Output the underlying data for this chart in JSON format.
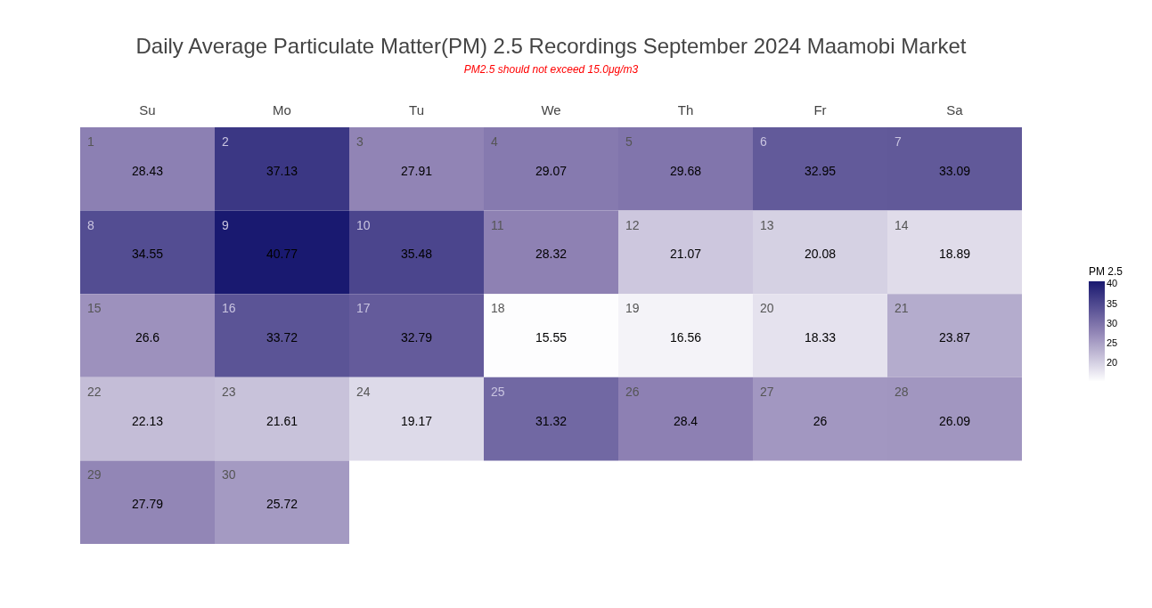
{
  "chart_data": {
    "type": "heatmap",
    "title": "Daily Average Particulate Matter(PM) 2.5 Recordings September 2024 Maamobi Market",
    "subtitle": "PM2.5 should not exceed 15.0μg/m3",
    "legend_title": "PM 2.5",
    "categories": [
      "Su",
      "Mo",
      "Tu",
      "We",
      "Th",
      "Fr",
      "Sa"
    ],
    "y_categories": [
      null,
      null,
      null,
      null,
      null
    ],
    "cells": [
      [
        28.43,
        37.13,
        27.91,
        29.07,
        29.68,
        32.95,
        33.09
      ],
      [
        34.55,
        40.77,
        35.48,
        28.32,
        21.07,
        20.08,
        18.89
      ],
      [
        26.6,
        33.72,
        32.79,
        15.55,
        16.56,
        18.33,
        23.87
      ],
      [
        22.13,
        21.61,
        19.17,
        31.32,
        28.4,
        26,
        26.09
      ],
      [
        27.79,
        25.72,
        null,
        null,
        null,
        null,
        null
      ]
    ],
    "annotations": [
      "1",
      "2",
      "3",
      "4",
      "5",
      "6",
      "7",
      "8",
      "9",
      "10",
      "11",
      "12",
      "13",
      "14",
      "15",
      "16",
      "17",
      "18",
      "19",
      "20",
      "21",
      "22",
      "23",
      "24",
      "25",
      "26",
      "27",
      "28",
      "29",
      "30"
    ],
    "data_labels": true,
    "clim": [
      15.55,
      40.77
    ],
    "cticks": [
      20,
      25,
      30,
      35,
      40
    ]
  }
}
